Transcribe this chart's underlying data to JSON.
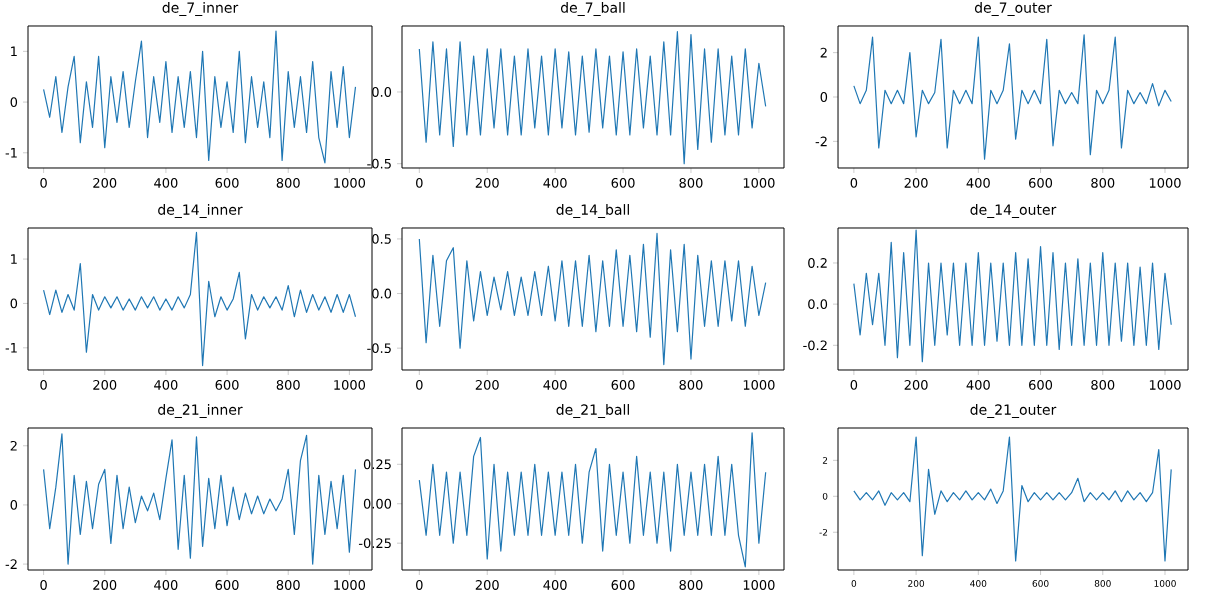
{
  "chart_data": [
    {
      "type": "line",
      "title": "de_7_inner",
      "color": "#1f77b4",
      "xlim": [
        -51,
        1074
      ],
      "ylim": [
        -1.3,
        1.5
      ],
      "xticks": [
        0,
        200,
        400,
        600,
        800,
        1000
      ],
      "yticks": [
        -1,
        0,
        1
      ],
      "x": [
        0,
        20,
        40,
        60,
        80,
        100,
        120,
        140,
        160,
        180,
        200,
        220,
        240,
        260,
        280,
        300,
        320,
        340,
        360,
        380,
        400,
        420,
        440,
        460,
        480,
        500,
        520,
        540,
        560,
        580,
        600,
        620,
        640,
        660,
        680,
        700,
        720,
        740,
        760,
        780,
        800,
        820,
        840,
        860,
        880,
        900,
        920,
        940,
        960,
        980,
        1000,
        1020
      ],
      "values": [
        0.25,
        -0.3,
        0.5,
        -0.6,
        0.3,
        0.9,
        -0.8,
        0.4,
        -0.5,
        0.9,
        -0.9,
        0.5,
        -0.4,
        0.6,
        -0.5,
        0.4,
        1.2,
        -0.7,
        0.5,
        -0.4,
        0.8,
        -0.6,
        0.5,
        -0.5,
        0.6,
        -0.7,
        1.0,
        -1.15,
        0.5,
        -0.5,
        0.4,
        -0.6,
        1.0,
        -0.8,
        0.5,
        -0.5,
        0.4,
        -0.7,
        1.4,
        -1.15,
        0.6,
        -0.5,
        0.5,
        -0.6,
        0.8,
        -0.7,
        -1.2,
        0.6,
        -0.5,
        0.7,
        -0.7,
        0.3
      ]
    },
    {
      "type": "line",
      "title": "de_7_ball",
      "color": "#1f77b4",
      "xlim": [
        -51,
        1074
      ],
      "ylim": [
        -0.53,
        0.46
      ],
      "xticks": [
        0,
        200,
        400,
        600,
        800,
        1000
      ],
      "yticks": [
        {
          "value": -0.5,
          "label": "-0.5"
        },
        {
          "value": 0,
          "label": "0.0"
        }
      ],
      "x": [
        0,
        20,
        40,
        60,
        80,
        100,
        120,
        140,
        160,
        180,
        200,
        220,
        240,
        260,
        280,
        300,
        320,
        340,
        360,
        380,
        400,
        420,
        440,
        460,
        480,
        500,
        520,
        540,
        560,
        580,
        600,
        620,
        640,
        660,
        680,
        700,
        720,
        740,
        760,
        780,
        800,
        820,
        840,
        860,
        880,
        900,
        920,
        940,
        960,
        980,
        1000,
        1020
      ],
      "values": [
        0.3,
        -0.35,
        0.35,
        -0.3,
        0.3,
        -0.38,
        0.35,
        -0.3,
        0.25,
        -0.3,
        0.3,
        -0.25,
        0.3,
        -0.3,
        0.25,
        -0.3,
        0.3,
        -0.25,
        0.25,
        -0.3,
        0.3,
        -0.25,
        0.28,
        -0.3,
        0.25,
        -0.28,
        0.3,
        -0.25,
        0.25,
        -0.3,
        0.28,
        -0.3,
        0.3,
        -0.25,
        0.25,
        -0.3,
        0.35,
        -0.3,
        0.42,
        -0.5,
        0.4,
        -0.4,
        0.3,
        -0.35,
        0.3,
        -0.3,
        0.25,
        -0.3,
        0.3,
        -0.25,
        0.2,
        -0.1
      ]
    },
    {
      "type": "line",
      "title": "de_7_outer",
      "color": "#1f77b4",
      "xlim": [
        -51,
        1074
      ],
      "ylim": [
        -3.2,
        3.2
      ],
      "xticks": [
        0,
        200,
        400,
        600,
        800,
        1000
      ],
      "yticks": [
        -2,
        0,
        2
      ],
      "x": [
        0,
        20,
        40,
        60,
        80,
        100,
        120,
        140,
        160,
        180,
        200,
        220,
        240,
        260,
        280,
        300,
        320,
        340,
        360,
        380,
        400,
        420,
        440,
        460,
        480,
        500,
        520,
        540,
        560,
        580,
        600,
        620,
        640,
        660,
        680,
        700,
        720,
        740,
        760,
        780,
        800,
        820,
        840,
        860,
        880,
        900,
        920,
        940,
        960,
        980,
        1000,
        1020
      ],
      "values": [
        0.5,
        -0.3,
        0.3,
        2.7,
        -2.3,
        0.3,
        -0.3,
        0.3,
        -0.3,
        2.0,
        -1.8,
        0.3,
        -0.3,
        0.2,
        2.6,
        -2.3,
        0.3,
        -0.3,
        0.3,
        -0.3,
        2.7,
        -2.8,
        0.3,
        -0.3,
        0.3,
        2.4,
        -1.9,
        0.3,
        -0.3,
        0.3,
        -0.3,
        2.6,
        -2.2,
        0.3,
        -0.3,
        0.2,
        -0.3,
        2.8,
        -2.6,
        0.3,
        -0.3,
        0.3,
        2.7,
        -2.3,
        0.3,
        -0.3,
        0.2,
        -0.3,
        0.6,
        -0.4,
        0.3,
        -0.2
      ]
    },
    {
      "type": "line",
      "title": "de_14_inner",
      "color": "#1f77b4",
      "xlim": [
        -51,
        1074
      ],
      "ylim": [
        -1.5,
        1.7
      ],
      "xticks": [
        0,
        200,
        400,
        600,
        800,
        1000
      ],
      "yticks": [
        -1,
        0,
        1
      ],
      "x": [
        0,
        20,
        40,
        60,
        80,
        100,
        120,
        140,
        160,
        180,
        200,
        220,
        240,
        260,
        280,
        300,
        320,
        340,
        360,
        380,
        400,
        420,
        440,
        460,
        480,
        500,
        520,
        540,
        560,
        580,
        600,
        620,
        640,
        660,
        680,
        700,
        720,
        740,
        760,
        780,
        800,
        820,
        840,
        860,
        880,
        900,
        920,
        940,
        960,
        980,
        1000,
        1020
      ],
      "values": [
        0.3,
        -0.25,
        0.3,
        -0.2,
        0.2,
        -0.15,
        0.9,
        -1.1,
        0.2,
        -0.15,
        0.15,
        -0.1,
        0.15,
        -0.15,
        0.1,
        -0.15,
        0.15,
        -0.1,
        0.15,
        -0.15,
        0.1,
        -0.15,
        0.15,
        -0.1,
        0.2,
        1.6,
        -1.4,
        0.5,
        -0.3,
        0.15,
        -0.15,
        0.1,
        0.7,
        -0.8,
        0.2,
        -0.15,
        0.15,
        -0.1,
        0.15,
        -0.15,
        0.4,
        -0.3,
        0.3,
        -0.2,
        0.2,
        -0.15,
        0.15,
        -0.2,
        0.2,
        -0.2,
        0.2,
        -0.3
      ]
    },
    {
      "type": "line",
      "title": "de_14_ball",
      "color": "#1f77b4",
      "xlim": [
        -51,
        1074
      ],
      "ylim": [
        -0.7,
        0.6
      ],
      "xticks": [
        0,
        200,
        400,
        600,
        800,
        1000
      ],
      "yticks": [
        {
          "value": -0.5,
          "label": "-0.5"
        },
        {
          "value": 0,
          "label": "0.0"
        },
        {
          "value": 0.5,
          "label": "0.5"
        }
      ],
      "x": [
        0,
        20,
        40,
        60,
        80,
        100,
        120,
        140,
        160,
        180,
        200,
        220,
        240,
        260,
        280,
        300,
        320,
        340,
        360,
        380,
        400,
        420,
        440,
        460,
        480,
        500,
        520,
        540,
        560,
        580,
        600,
        620,
        640,
        660,
        680,
        700,
        720,
        740,
        760,
        780,
        800,
        820,
        840,
        860,
        880,
        900,
        920,
        940,
        960,
        980,
        1000,
        1020
      ],
      "values": [
        0.5,
        -0.45,
        0.35,
        -0.3,
        0.3,
        0.42,
        -0.5,
        0.3,
        -0.25,
        0.2,
        -0.2,
        0.15,
        -0.15,
        0.2,
        -0.2,
        0.15,
        -0.2,
        0.2,
        -0.2,
        0.25,
        -0.25,
        0.3,
        -0.3,
        0.3,
        -0.3,
        0.35,
        -0.35,
        0.3,
        -0.3,
        0.4,
        -0.3,
        0.35,
        -0.35,
        0.45,
        -0.4,
        0.55,
        -0.65,
        0.4,
        -0.35,
        0.45,
        -0.6,
        0.35,
        -0.3,
        0.3,
        -0.3,
        0.3,
        -0.25,
        0.3,
        -0.3,
        0.25,
        -0.2,
        0.1
      ]
    },
    {
      "type": "line",
      "title": "de_14_outer",
      "color": "#1f77b4",
      "xlim": [
        -51,
        1074
      ],
      "ylim": [
        -0.32,
        0.37
      ],
      "xticks": [
        0,
        200,
        400,
        600,
        800,
        1000
      ],
      "yticks": [
        {
          "value": -0.2,
          "label": "-0.2"
        },
        {
          "value": 0,
          "label": "0.0"
        },
        {
          "value": 0.2,
          "label": "0.2"
        }
      ],
      "x": [
        0,
        20,
        40,
        60,
        80,
        100,
        120,
        140,
        160,
        180,
        200,
        220,
        240,
        260,
        280,
        300,
        320,
        340,
        360,
        380,
        400,
        420,
        440,
        460,
        480,
        500,
        520,
        540,
        560,
        580,
        600,
        620,
        640,
        660,
        680,
        700,
        720,
        740,
        760,
        780,
        800,
        820,
        840,
        860,
        880,
        900,
        920,
        940,
        960,
        980,
        1000,
        1020
      ],
      "values": [
        0.1,
        -0.15,
        0.15,
        -0.1,
        0.15,
        -0.2,
        0.3,
        -0.26,
        0.25,
        -0.2,
        0.36,
        -0.28,
        0.2,
        -0.2,
        0.2,
        -0.15,
        0.2,
        -0.2,
        0.2,
        -0.2,
        0.25,
        -0.2,
        0.2,
        -0.18,
        0.2,
        -0.2,
        0.25,
        -0.2,
        0.22,
        -0.2,
        0.28,
        -0.2,
        0.25,
        -0.22,
        0.2,
        -0.2,
        0.22,
        -0.2,
        0.2,
        -0.2,
        0.25,
        -0.2,
        0.2,
        -0.18,
        0.2,
        -0.2,
        0.18,
        -0.2,
        0.2,
        -0.22,
        0.15,
        -0.1
      ]
    },
    {
      "type": "line",
      "title": "de_21_inner",
      "color": "#1f77b4",
      "xlim": [
        -51,
        1074
      ],
      "ylim": [
        -2.2,
        2.6
      ],
      "xticks": [
        0,
        200,
        400,
        600,
        800,
        1000
      ],
      "yticks": [
        -2,
        0,
        2
      ],
      "x": [
        0,
        20,
        40,
        60,
        80,
        100,
        120,
        140,
        160,
        180,
        200,
        220,
        240,
        260,
        280,
        300,
        320,
        340,
        360,
        380,
        400,
        420,
        440,
        460,
        480,
        500,
        520,
        540,
        560,
        580,
        600,
        620,
        640,
        660,
        680,
        700,
        720,
        740,
        760,
        780,
        800,
        820,
        840,
        860,
        880,
        900,
        920,
        940,
        960,
        980,
        1000,
        1020
      ],
      "values": [
        1.2,
        -0.8,
        0.6,
        2.4,
        -2.0,
        1.0,
        -1.0,
        0.8,
        -0.8,
        0.7,
        1.2,
        -1.3,
        1.0,
        -0.8,
        0.6,
        -0.6,
        0.3,
        -0.2,
        0.4,
        -0.5,
        0.9,
        2.2,
        -1.5,
        1.0,
        -1.8,
        2.3,
        -1.4,
        0.9,
        -0.8,
        1.0,
        -0.7,
        0.6,
        -0.5,
        0.4,
        -0.3,
        0.3,
        -0.3,
        0.2,
        -0.2,
        0.2,
        1.2,
        -1.0,
        1.5,
        2.35,
        -2.0,
        1.0,
        -1.0,
        0.8,
        -0.8,
        1.0,
        -1.6,
        1.2
      ]
    },
    {
      "type": "line",
      "title": "de_21_ball",
      "color": "#1f77b4",
      "xlim": [
        -51,
        1074
      ],
      "ylim": [
        -0.42,
        0.48
      ],
      "xticks": [
        0,
        200,
        400,
        600,
        800,
        1000
      ],
      "yticks": [
        {
          "value": -0.25,
          "label": "-0.25"
        },
        {
          "value": 0,
          "label": "0.00"
        },
        {
          "value": 0.25,
          "label": "0.25"
        }
      ],
      "x": [
        0,
        20,
        40,
        60,
        80,
        100,
        120,
        140,
        160,
        180,
        200,
        220,
        240,
        260,
        280,
        300,
        320,
        340,
        360,
        380,
        400,
        420,
        440,
        460,
        480,
        500,
        520,
        540,
        560,
        580,
        600,
        620,
        640,
        660,
        680,
        700,
        720,
        740,
        760,
        780,
        800,
        820,
        840,
        860,
        880,
        900,
        920,
        940,
        960,
        980,
        1000,
        1020
      ],
      "values": [
        0.15,
        -0.2,
        0.25,
        -0.2,
        0.2,
        -0.25,
        0.2,
        -0.2,
        0.3,
        0.42,
        -0.35,
        0.25,
        -0.3,
        0.2,
        -0.2,
        0.2,
        -0.2,
        0.25,
        -0.2,
        0.2,
        -0.2,
        0.2,
        -0.2,
        0.25,
        -0.25,
        0.2,
        0.35,
        -0.3,
        0.25,
        -0.2,
        0.2,
        -0.25,
        0.3,
        -0.2,
        0.2,
        -0.25,
        0.2,
        -0.3,
        0.25,
        -0.2,
        0.2,
        -0.2,
        0.25,
        -0.2,
        0.3,
        -0.2,
        0.25,
        -0.2,
        -0.4,
        0.45,
        -0.25,
        0.2
      ]
    },
    {
      "type": "line",
      "title": "de_21_outer",
      "color": "#1f77b4",
      "xlim": [
        -51,
        1074
      ],
      "ylim": [
        -4.1,
        3.8
      ],
      "xticks": [
        0,
        200,
        400,
        600,
        800,
        1000
      ],
      "yticks": [
        -2,
        0,
        2
      ],
      "x": [
        0,
        20,
        40,
        60,
        80,
        100,
        120,
        140,
        160,
        180,
        200,
        220,
        240,
        260,
        280,
        300,
        320,
        340,
        360,
        380,
        400,
        420,
        440,
        460,
        480,
        500,
        520,
        540,
        560,
        580,
        600,
        620,
        640,
        660,
        680,
        700,
        720,
        740,
        760,
        780,
        800,
        820,
        840,
        860,
        880,
        900,
        920,
        940,
        960,
        980,
        1000,
        1020
      ],
      "values": [
        0.3,
        -0.2,
        0.2,
        -0.2,
        0.3,
        -0.5,
        0.2,
        -0.2,
        0.2,
        -0.3,
        3.3,
        -3.3,
        1.5,
        -1.0,
        0.3,
        -0.3,
        0.2,
        -0.2,
        0.3,
        -0.2,
        0.2,
        -0.2,
        0.4,
        -0.4,
        0.3,
        3.3,
        -3.6,
        0.6,
        -0.3,
        0.2,
        -0.2,
        0.2,
        -0.2,
        0.2,
        -0.2,
        0.2,
        1.0,
        -0.3,
        0.2,
        -0.2,
        0.2,
        -0.2,
        0.3,
        -0.3,
        0.3,
        -0.2,
        0.2,
        -0.3,
        0.2,
        2.6,
        -3.6,
        1.5
      ]
    }
  ]
}
